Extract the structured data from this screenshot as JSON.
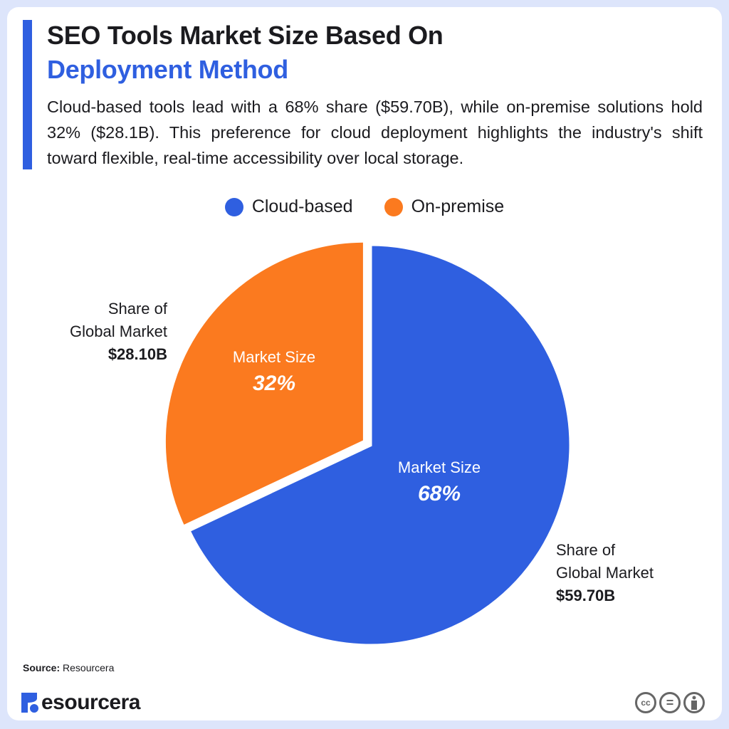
{
  "header": {
    "title_line1": "SEO Tools Market Size Based On",
    "title_line2": "Deployment Method",
    "description": "Cloud-based tools lead with a 68% share ($59.70B), while on-premise solutions hold 32% ($28.1B). This preference for cloud deployment highlights the industry's shift toward flexible, real-time accessibility over local storage."
  },
  "chart_data": {
    "type": "pie",
    "start": "top",
    "direction": "clockwise",
    "legend_position": "top",
    "series": [
      {
        "name": "Cloud-based",
        "value": 68,
        "inner_label": "Market Size",
        "inner_value": "68%",
        "outer_label_1": "Share of",
        "outer_label_2": "Global Market",
        "outer_value": "$59.70B",
        "color": "#2f5fe0"
      },
      {
        "name": "On-premise",
        "value": 32,
        "inner_label": "Market Size",
        "inner_value": "32%",
        "outer_label_1": "Share of",
        "outer_label_2": "Global Market",
        "outer_value": "$28.10B",
        "color": "#fb7a1f"
      }
    ]
  },
  "footer": {
    "source_label": "Source:",
    "source_value": "Resourcera",
    "logo_text": "esourcera",
    "license_icons": [
      "cc-icon",
      "no-derivatives-icon",
      "attribution-icon"
    ],
    "cc_text": "cc",
    "nd_text": "="
  },
  "colors": {
    "accent": "#2f5fe0",
    "orange": "#fb7a1f",
    "background": "#dde5fb"
  }
}
